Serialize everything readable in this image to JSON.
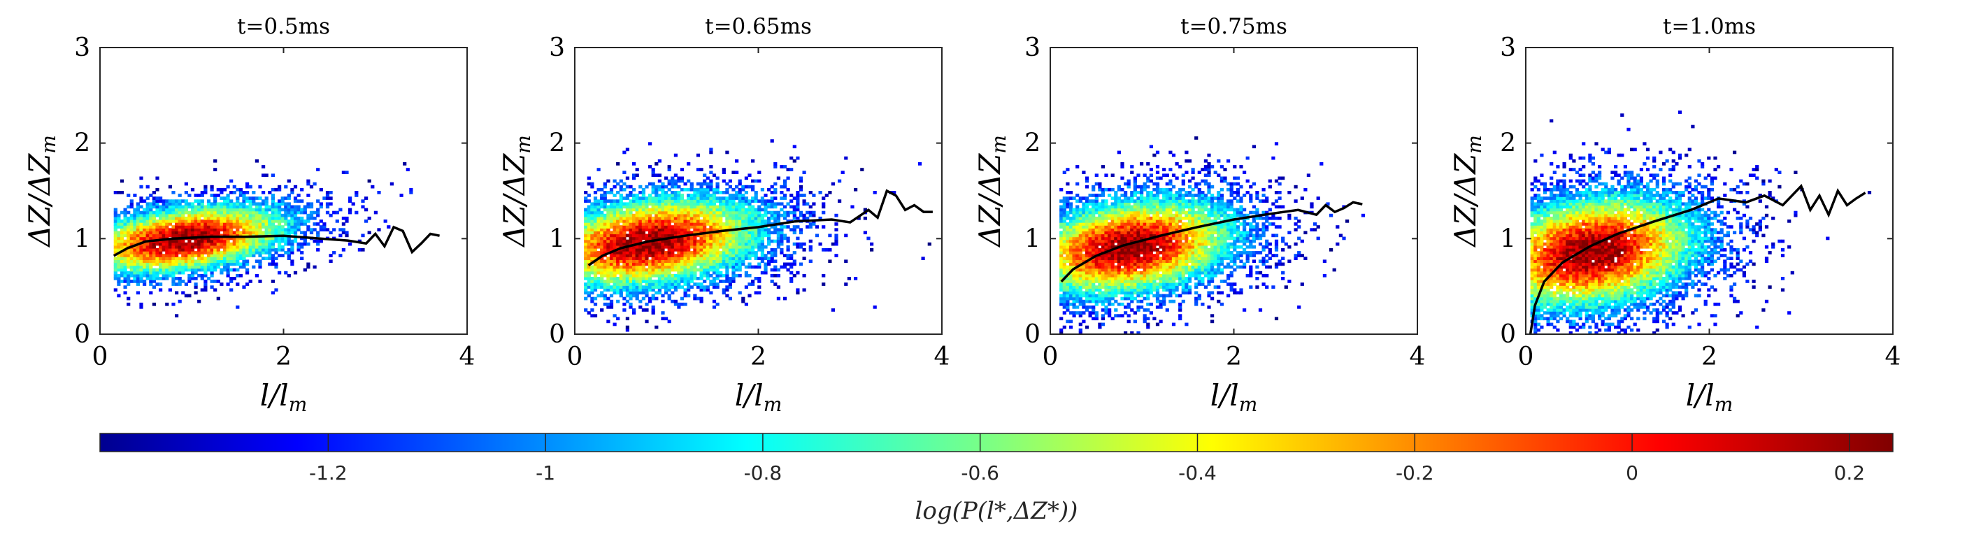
{
  "chart_data": {
    "type": "heatmap",
    "panels": [
      {
        "title": "t=0.5ms",
        "xlabel": "l/l_m",
        "ylabel": "ΔZ/ΔZ_m",
        "xlim": [
          0,
          4
        ],
        "ylim": [
          0,
          3
        ],
        "xticks": [
          "0",
          "2",
          "4"
        ],
        "yticks": [
          "0",
          "1",
          "2",
          "3"
        ],
        "density": {
          "center": [
            0.9,
            0.98
          ],
          "spread": [
            0.75,
            0.22
          ],
          "x_extent": [
            0.15,
            3.7
          ]
        },
        "mean_curve": {
          "x": [
            0.15,
            0.3,
            0.5,
            0.8,
            1.2,
            1.6,
            2.0,
            2.4,
            2.7,
            2.9,
            3.0,
            3.1,
            3.2,
            3.3,
            3.4,
            3.5,
            3.6,
            3.7
          ],
          "y": [
            0.82,
            0.9,
            0.97,
            1.0,
            1.02,
            1.02,
            1.03,
            1.0,
            0.98,
            0.95,
            1.05,
            0.92,
            1.12,
            1.08,
            0.86,
            0.95,
            1.05,
            1.03
          ]
        }
      },
      {
        "title": "t=0.65ms",
        "xlabel": "l/l_m",
        "ylabel": "ΔZ/ΔZ_m",
        "xlim": [
          0,
          4
        ],
        "ylim": [
          0,
          3
        ],
        "xticks": [
          "0",
          "2",
          "4"
        ],
        "yticks": [
          "0",
          "1",
          "2",
          "3"
        ],
        "density": {
          "center": [
            0.8,
            0.95
          ],
          "spread": [
            0.8,
            0.3
          ],
          "x_extent": [
            0.1,
            3.9
          ]
        },
        "mean_curve": {
          "x": [
            0.15,
            0.3,
            0.5,
            0.8,
            1.2,
            1.6,
            2.0,
            2.4,
            2.8,
            3.0,
            3.2,
            3.3,
            3.4,
            3.5,
            3.6,
            3.7,
            3.8,
            3.9
          ],
          "y": [
            0.72,
            0.82,
            0.9,
            0.97,
            1.03,
            1.08,
            1.12,
            1.18,
            1.2,
            1.17,
            1.3,
            1.22,
            1.5,
            1.45,
            1.3,
            1.35,
            1.28,
            1.28
          ]
        }
      },
      {
        "title": "t=0.75ms",
        "xlabel": "l/l_m",
        "ylabel": "ΔZ/ΔZ_m",
        "xlim": [
          0,
          4
        ],
        "ylim": [
          0,
          3
        ],
        "xticks": [
          "0",
          "2",
          "4"
        ],
        "yticks": [
          "0",
          "1",
          "2",
          "3"
        ],
        "density": {
          "center": [
            0.85,
            0.9
          ],
          "spread": [
            0.75,
            0.32
          ],
          "x_extent": [
            0.1,
            3.4
          ]
        },
        "mean_curve": {
          "x": [
            0.12,
            0.25,
            0.5,
            0.8,
            1.2,
            1.6,
            2.0,
            2.4,
            2.7,
            2.9,
            3.0,
            3.1,
            3.2,
            3.3,
            3.4
          ],
          "y": [
            0.55,
            0.68,
            0.82,
            0.93,
            1.03,
            1.12,
            1.2,
            1.26,
            1.3,
            1.25,
            1.35,
            1.28,
            1.32,
            1.38,
            1.36
          ]
        }
      },
      {
        "title": "t=1.0ms",
        "xlabel": "l/l_m",
        "ylabel": "ΔZ/ΔZ_m",
        "xlim": [
          0,
          4
        ],
        "ylim": [
          0,
          3
        ],
        "xticks": [
          "0",
          "2",
          "4"
        ],
        "yticks": [
          "0",
          "1",
          "2",
          "3"
        ],
        "density": {
          "center": [
            0.7,
            0.85
          ],
          "spread": [
            0.75,
            0.38
          ],
          "x_extent": [
            0.05,
            3.8
          ]
        },
        "mean_curve": {
          "x": [
            0.05,
            0.1,
            0.2,
            0.4,
            0.7,
            1.0,
            1.4,
            1.8,
            2.1,
            2.4,
            2.6,
            2.8,
            3.0,
            3.1,
            3.2,
            3.3,
            3.4,
            3.5,
            3.6,
            3.7
          ],
          "y": [
            0.0,
            0.3,
            0.55,
            0.75,
            0.92,
            1.05,
            1.18,
            1.3,
            1.42,
            1.38,
            1.45,
            1.35,
            1.55,
            1.3,
            1.45,
            1.25,
            1.5,
            1.35,
            1.42,
            1.48
          ]
        }
      }
    ],
    "colorbar": {
      "label": "log(P(l*,ΔZ*))",
      "min": -1.41,
      "max": 0.24,
      "ticks": [
        -1.2,
        -1.0,
        -0.8,
        -0.6,
        -0.4,
        -0.2,
        0,
        0.2
      ],
      "tick_labels": [
        "-1.2",
        "-1",
        "-0.8",
        "-0.6",
        "-0.4",
        "-0.2",
        "0",
        "0.2"
      ],
      "colormap": "jet"
    },
    "mean_line_color": "#000000"
  }
}
